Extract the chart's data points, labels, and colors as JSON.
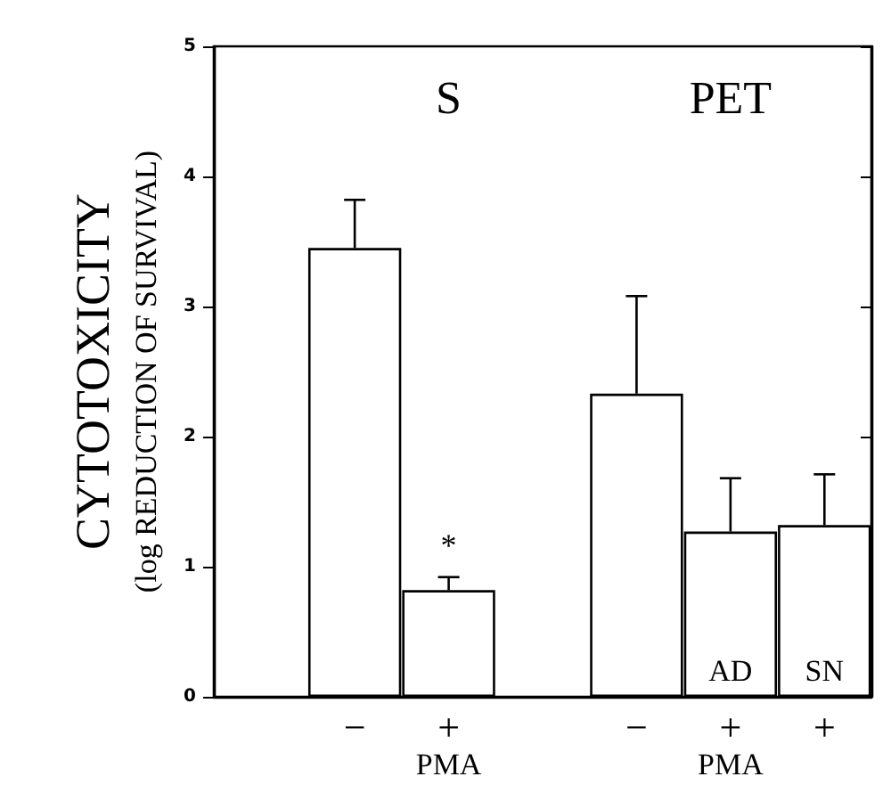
{
  "chart_data": {
    "type": "bar",
    "ylabel": "CYTOTOXICITY\n(log REDUCTION OF SURVIVAL)",
    "categories": [
      null,
      "−",
      "+",
      null,
      "−",
      "+",
      "+"
    ],
    "values": [
      null,
      3.45,
      0.82,
      null,
      2.33,
      1.27,
      1.32
    ],
    "errors": [
      null,
      [
        3.45,
        3.82
      ],
      [
        0.82,
        0.92
      ],
      null,
      [
        2.33,
        3.08
      ],
      [
        1.27,
        1.68
      ],
      [
        1.32,
        1.71
      ]
    ],
    "value_labels": [
      null,
      null,
      null,
      null,
      null,
      "AD",
      "SN"
    ],
    "color": "#ffffff",
    "annotations": [
      "S",
      "PET",
      "*",
      "PMA",
      "PMA"
    ],
    "ylim": [
      0,
      5
    ],
    "yticks": [
      0,
      1,
      2,
      3,
      4,
      5
    ],
    "grid": false
  }
}
